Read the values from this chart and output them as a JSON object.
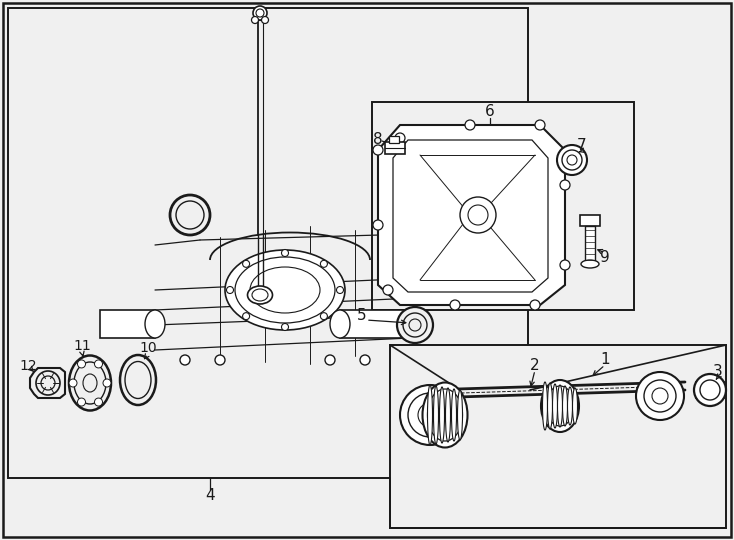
{
  "bg_color": "#f0f0f0",
  "line_color": "#1a1a1a",
  "white": "#ffffff",
  "gray_light": "#d8d8d8",
  "figsize": [
    7.34,
    5.4
  ],
  "dpi": 100
}
